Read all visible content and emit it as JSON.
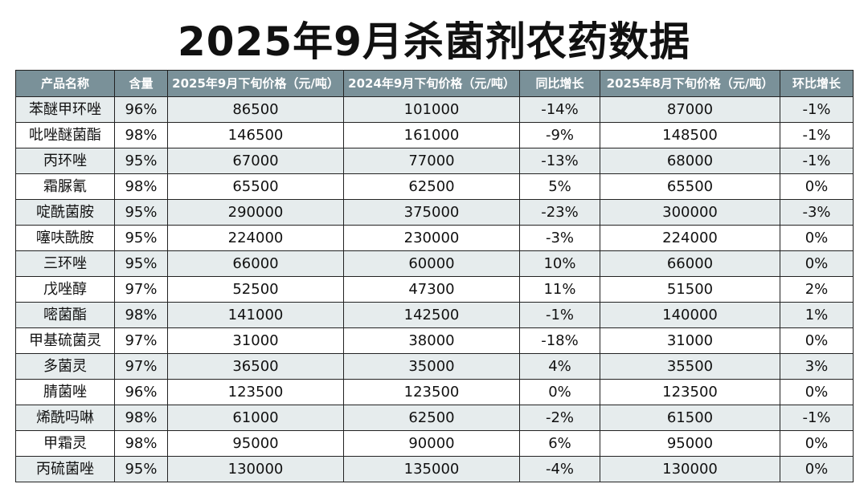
{
  "title": "2025年9月杀菌剂农药数据",
  "table": {
    "headers": [
      "产品名称",
      "含量",
      "2025年9月下旬价格（元/吨）",
      "2024年9月下旬价格（元/吨）",
      "同比增长",
      "2025年8月下旬价格（元/吨）",
      "环比增长"
    ],
    "rows": [
      [
        "苯醚甲环唑",
        "96%",
        "86500",
        "101000",
        "-14%",
        "87000",
        "-1%"
      ],
      [
        "吡唑醚菌酯",
        "98%",
        "146500",
        "161000",
        "-9%",
        "148500",
        "-1%"
      ],
      [
        "丙环唑",
        "95%",
        "67000",
        "77000",
        "-13%",
        "68000",
        "-1%"
      ],
      [
        "霜脲氰",
        "98%",
        "65500",
        "62500",
        "5%",
        "65500",
        "0%"
      ],
      [
        "啶酰菌胺",
        "95%",
        "290000",
        "375000",
        "-23%",
        "300000",
        "-3%"
      ],
      [
        "噻呋酰胺",
        "95%",
        "224000",
        "230000",
        "-3%",
        "224000",
        "0%"
      ],
      [
        "三环唑",
        "95%",
        "66000",
        "60000",
        "10%",
        "66000",
        "0%"
      ],
      [
        "戊唑醇",
        "97%",
        "52500",
        "47300",
        "11%",
        "51500",
        "2%"
      ],
      [
        "嘧菌酯",
        "98%",
        "141000",
        "142500",
        "-1%",
        "140000",
        "1%"
      ],
      [
        "甲基硫菌灵",
        "97%",
        "31000",
        "38000",
        "-18%",
        "31000",
        "0%"
      ],
      [
        "多菌灵",
        "97%",
        "36500",
        "35000",
        "4%",
        "35500",
        "3%"
      ],
      [
        "腈菌唑",
        "96%",
        "123500",
        "123500",
        "0%",
        "123500",
        "0%"
      ],
      [
        "烯酰吗啉",
        "98%",
        "61000",
        "62500",
        "-2%",
        "61500",
        "-1%"
      ],
      [
        "甲霜灵",
        "98%",
        "95000",
        "90000",
        "6%",
        "95000",
        "0%"
      ],
      [
        "丙硫菌唑",
        "95%",
        "130000",
        "135000",
        "-4%",
        "130000",
        "0%"
      ]
    ]
  },
  "colors": {
    "header_bg": "#7a9199",
    "header_text": "#ffffff",
    "row_odd_bg": "#e6eced",
    "row_even_bg": "#ffffff",
    "border": "#222222"
  }
}
